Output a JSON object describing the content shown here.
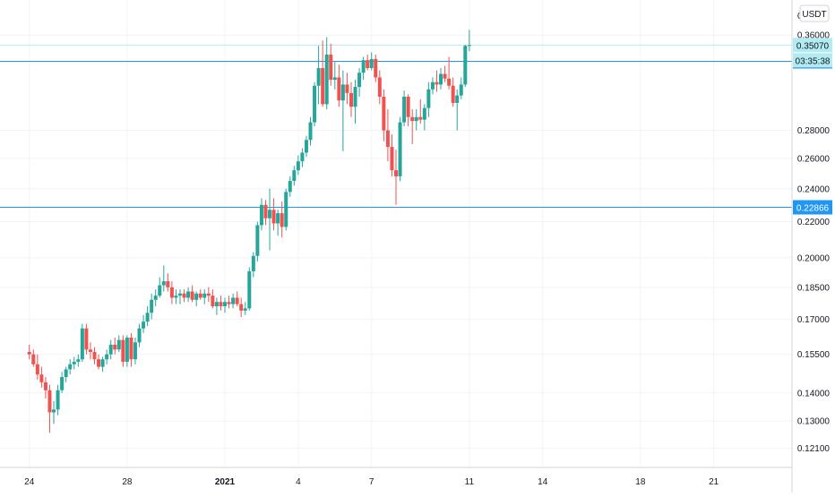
{
  "chart_data": {
    "type": "candlestick",
    "currency": "USDT",
    "scale": "log",
    "grid": true,
    "legend": "none",
    "y_axis": {
      "side": "right",
      "ticks": [
        "0.36000",
        "0.28000",
        "0.26000",
        "0.24000",
        "0.22000",
        "0.20000",
        "0.18500",
        "0.17000",
        "0.15500",
        "0.14000",
        "0.13000",
        "0.12100"
      ],
      "top_partial_label": "0",
      "ylim": [
        0.115,
        0.395
      ]
    },
    "x_axis": {
      "tick_labels": [
        {
          "label": "24",
          "day": 0,
          "bold": false
        },
        {
          "label": "28",
          "day": 4,
          "bold": false
        },
        {
          "label": "2021",
          "day": 8,
          "bold": true
        },
        {
          "label": "4",
          "day": 11,
          "bold": false
        },
        {
          "label": "7",
          "day": 14,
          "bold": false
        },
        {
          "label": "11",
          "day": 18,
          "bold": false
        },
        {
          "label": "14",
          "day": 21,
          "bold": false
        },
        {
          "label": "18",
          "day": 25,
          "bold": false
        },
        {
          "label": "21",
          "day": 28,
          "bold": false
        }
      ],
      "xlim": [
        -1.2,
        31.2
      ]
    },
    "horizontal_lines": [
      {
        "value": 0.3364,
        "label": "0.33635"
      },
      {
        "value": 0.2287,
        "label": "0.22866"
      }
    ],
    "price_tags": [
      {
        "label": "0.35070",
        "value": 0.3507,
        "kind": "last-price"
      },
      {
        "label": "03:35:38",
        "kind": "countdown"
      }
    ],
    "colors": {
      "up": "#26a69a",
      "down": "#ef5350",
      "hline": "#2196f3",
      "grid": "#f0f3fa",
      "axis_text": "#131722"
    },
    "candles": [
      [
        0.156,
        0.159,
        0.153,
        0.155
      ],
      [
        0.155,
        0.157,
        0.15,
        0.151
      ],
      [
        0.151,
        0.155,
        0.145,
        0.147
      ],
      [
        0.147,
        0.15,
        0.142,
        0.144
      ],
      [
        0.144,
        0.146,
        0.138,
        0.141
      ],
      [
        0.141,
        0.143,
        0.126,
        0.133
      ],
      [
        0.133,
        0.137,
        0.129,
        0.134
      ],
      [
        0.134,
        0.143,
        0.132,
        0.141
      ],
      [
        0.141,
        0.148,
        0.14,
        0.146
      ],
      [
        0.146,
        0.15,
        0.144,
        0.149
      ],
      [
        0.149,
        0.153,
        0.147,
        0.151
      ],
      [
        0.151,
        0.154,
        0.149,
        0.152
      ],
      [
        0.152,
        0.155,
        0.15,
        0.153
      ],
      [
        0.153,
        0.168,
        0.152,
        0.166
      ],
      [
        0.166,
        0.168,
        0.155,
        0.157
      ],
      [
        0.157,
        0.16,
        0.153,
        0.156
      ],
      [
        0.156,
        0.158,
        0.151,
        0.153
      ],
      [
        0.153,
        0.155,
        0.149,
        0.15
      ],
      [
        0.15,
        0.154,
        0.148,
        0.153
      ],
      [
        0.153,
        0.157,
        0.151,
        0.155
      ],
      [
        0.155,
        0.161,
        0.153,
        0.159
      ],
      [
        0.159,
        0.162,
        0.155,
        0.157
      ],
      [
        0.157,
        0.163,
        0.156,
        0.161
      ],
      [
        0.161,
        0.163,
        0.15,
        0.152
      ],
      [
        0.152,
        0.163,
        0.15,
        0.162
      ],
      [
        0.162,
        0.164,
        0.15,
        0.153
      ],
      [
        0.153,
        0.162,
        0.151,
        0.16
      ],
      [
        0.16,
        0.168,
        0.158,
        0.166
      ],
      [
        0.166,
        0.172,
        0.164,
        0.169
      ],
      [
        0.169,
        0.176,
        0.167,
        0.173
      ],
      [
        0.173,
        0.182,
        0.17,
        0.179
      ],
      [
        0.179,
        0.184,
        0.176,
        0.181
      ],
      [
        0.181,
        0.19,
        0.18,
        0.186
      ],
      [
        0.186,
        0.196,
        0.183,
        0.188
      ],
      [
        0.188,
        0.192,
        0.183,
        0.185
      ],
      [
        0.185,
        0.188,
        0.177,
        0.18
      ],
      [
        0.18,
        0.184,
        0.177,
        0.181
      ],
      [
        0.181,
        0.184,
        0.177,
        0.182
      ],
      [
        0.182,
        0.184,
        0.178,
        0.18
      ],
      [
        0.18,
        0.185,
        0.178,
        0.183
      ],
      [
        0.183,
        0.186,
        0.178,
        0.179
      ],
      [
        0.179,
        0.183,
        0.176,
        0.182
      ],
      [
        0.182,
        0.184,
        0.179,
        0.18
      ],
      [
        0.18,
        0.184,
        0.177,
        0.182
      ],
      [
        0.182,
        0.185,
        0.178,
        0.181
      ],
      [
        0.181,
        0.184,
        0.175,
        0.176
      ],
      [
        0.176,
        0.18,
        0.172,
        0.178
      ],
      [
        0.178,
        0.181,
        0.174,
        0.176
      ],
      [
        0.176,
        0.18,
        0.173,
        0.178
      ],
      [
        0.178,
        0.181,
        0.175,
        0.177
      ],
      [
        0.177,
        0.182,
        0.175,
        0.18
      ],
      [
        0.18,
        0.183,
        0.176,
        0.177
      ],
      [
        0.177,
        0.18,
        0.171,
        0.174
      ],
      [
        0.174,
        0.178,
        0.172,
        0.175
      ],
      [
        0.175,
        0.195,
        0.174,
        0.193
      ],
      [
        0.193,
        0.203,
        0.19,
        0.201
      ],
      [
        0.201,
        0.22,
        0.198,
        0.218
      ],
      [
        0.218,
        0.234,
        0.215,
        0.23
      ],
      [
        0.23,
        0.233,
        0.218,
        0.222
      ],
      [
        0.222,
        0.24,
        0.204,
        0.227
      ],
      [
        0.227,
        0.234,
        0.215,
        0.219
      ],
      [
        0.219,
        0.227,
        0.212,
        0.225
      ],
      [
        0.225,
        0.232,
        0.211,
        0.217
      ],
      [
        0.217,
        0.24,
        0.215,
        0.238
      ],
      [
        0.238,
        0.248,
        0.235,
        0.245
      ],
      [
        0.245,
        0.255,
        0.242,
        0.252
      ],
      [
        0.252,
        0.262,
        0.249,
        0.258
      ],
      [
        0.258,
        0.267,
        0.254,
        0.264
      ],
      [
        0.264,
        0.276,
        0.261,
        0.273
      ],
      [
        0.273,
        0.29,
        0.269,
        0.286
      ],
      [
        0.286,
        0.318,
        0.283,
        0.315
      ],
      [
        0.315,
        0.35,
        0.3,
        0.33
      ],
      [
        0.33,
        0.355,
        0.298,
        0.3
      ],
      [
        0.3,
        0.358,
        0.296,
        0.342
      ],
      [
        0.342,
        0.352,
        0.315,
        0.32
      ],
      [
        0.32,
        0.336,
        0.312,
        0.322
      ],
      [
        0.322,
        0.333,
        0.298,
        0.303
      ],
      [
        0.303,
        0.328,
        0.265,
        0.316
      ],
      [
        0.316,
        0.326,
        0.3,
        0.309
      ],
      [
        0.309,
        0.318,
        0.29,
        0.298
      ],
      [
        0.298,
        0.32,
        0.285,
        0.314
      ],
      [
        0.314,
        0.33,
        0.306,
        0.326
      ],
      [
        0.326,
        0.34,
        0.32,
        0.337
      ],
      [
        0.337,
        0.342,
        0.328,
        0.33
      ],
      [
        0.33,
        0.344,
        0.328,
        0.338
      ],
      [
        0.338,
        0.342,
        0.318,
        0.322
      ],
      [
        0.322,
        0.328,
        0.3,
        0.306
      ],
      [
        0.306,
        0.312,
        0.272,
        0.28
      ],
      [
        0.28,
        0.296,
        0.258,
        0.268
      ],
      [
        0.268,
        0.277,
        0.248,
        0.252
      ],
      [
        0.252,
        0.266,
        0.23,
        0.248
      ],
      [
        0.248,
        0.29,
        0.245,
        0.286
      ],
      [
        0.286,
        0.311,
        0.283,
        0.306
      ],
      [
        0.306,
        0.308,
        0.283,
        0.29
      ],
      [
        0.29,
        0.296,
        0.27,
        0.287
      ],
      [
        0.287,
        0.296,
        0.28,
        0.29
      ],
      [
        0.29,
        0.304,
        0.285,
        0.288
      ],
      [
        0.288,
        0.3,
        0.28,
        0.297
      ],
      [
        0.297,
        0.318,
        0.29,
        0.312
      ],
      [
        0.312,
        0.322,
        0.308,
        0.318
      ],
      [
        0.318,
        0.328,
        0.31,
        0.316
      ],
      [
        0.316,
        0.33,
        0.312,
        0.325
      ],
      [
        0.325,
        0.332,
        0.318,
        0.321
      ],
      [
        0.321,
        0.34,
        0.312,
        0.315
      ],
      [
        0.315,
        0.322,
        0.298,
        0.301
      ],
      [
        0.301,
        0.312,
        0.28,
        0.307
      ],
      [
        0.307,
        0.322,
        0.304,
        0.316
      ],
      [
        0.316,
        0.351,
        0.314,
        0.35
      ],
      [
        0.35,
        0.365,
        0.345,
        0.3507
      ]
    ]
  }
}
